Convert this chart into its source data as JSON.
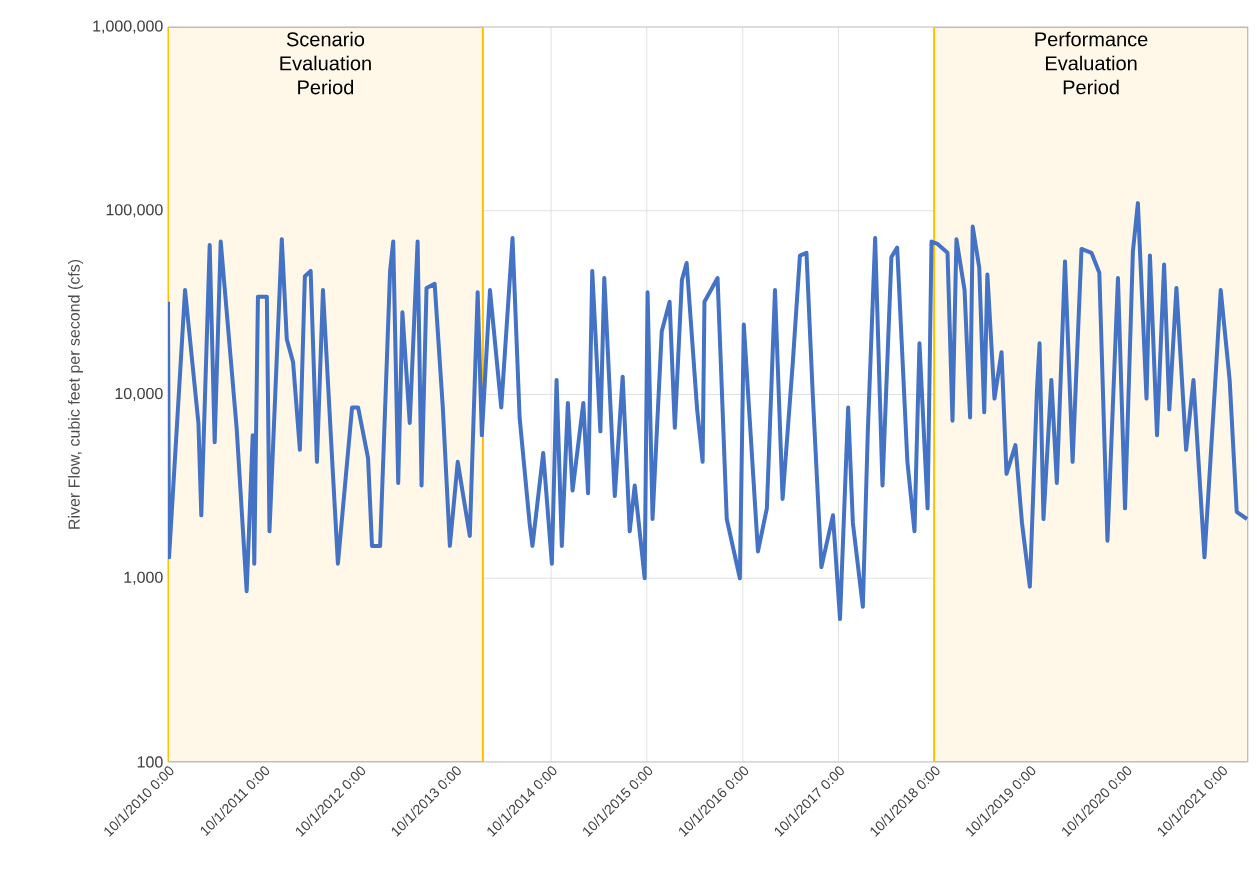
{
  "chart_data": {
    "type": "line",
    "ylabel": "River Flow, cubic feet per second (cfs)",
    "log": "y",
    "grid": true,
    "line_style": "solid",
    "xlim": [
      "2010-10-01",
      "2022-01-10"
    ],
    "ylim": [
      100,
      1000000
    ],
    "yticks": [
      {
        "value": 100,
        "label": "100"
      },
      {
        "value": 1000,
        "label": "1,000"
      },
      {
        "value": 10000,
        "label": "10,000"
      },
      {
        "value": 100000,
        "label": "100,000"
      },
      {
        "value": 1000000,
        "label": "1,000,000"
      }
    ],
    "xticks": [
      {
        "value": "2010-10-01",
        "label": "10/1/2010 0:00"
      },
      {
        "value": "2011-10-01",
        "label": "10/1/2011 0:00"
      },
      {
        "value": "2012-10-01",
        "label": "10/1/2012 0:00"
      },
      {
        "value": "2013-10-01",
        "label": "10/1/2013 0:00"
      },
      {
        "value": "2014-10-01",
        "label": "10/1/2014 0:00"
      },
      {
        "value": "2015-10-01",
        "label": "10/1/2015 0:00"
      },
      {
        "value": "2016-10-01",
        "label": "10/1/2016 0:00"
      },
      {
        "value": "2017-10-01",
        "label": "10/1/2017 0:00"
      },
      {
        "value": "2018-10-01",
        "label": "10/1/2018 0:00"
      },
      {
        "value": "2019-10-01",
        "label": "10/1/2019 0:00"
      },
      {
        "value": "2020-10-01",
        "label": "10/1/2020 0:00"
      },
      {
        "value": "2021-10-01",
        "label": "10/1/2021 0:00"
      }
    ],
    "bands": [
      {
        "axis": "x",
        "from": "2010-10-01",
        "to": "2014-01-14",
        "label": "Scenario Evaluation Period",
        "color": "#fff8e8"
      },
      {
        "axis": "x",
        "from": "2018-10-01",
        "to": "2022-01-10",
        "label": "Performance Evaluation Period",
        "color": "#fff8e8"
      }
    ],
    "series": [
      {
        "color": "#4472c4",
        "x": [
          "2010-10-01",
          "2010-10-05",
          "2010-12-05",
          "2011-01-25",
          "2011-02-05",
          "2011-03-09",
          "2011-03-28",
          "2011-04-20",
          "2011-05-16",
          "2011-06-20",
          "2011-07-28",
          "2011-08-20",
          "2011-08-26",
          "2011-09-09",
          "2011-10-13",
          "2011-10-23",
          "2011-12-09",
          "2011-12-28",
          "2012-01-21",
          "2012-02-16",
          "2012-03-06",
          "2012-03-28",
          "2012-04-21",
          "2012-05-14",
          "2012-06-21",
          "2012-07-10",
          "2012-09-02",
          "2012-09-25",
          "2012-11-02",
          "2012-11-17",
          "2012-12-18",
          "2013-01-25",
          "2013-02-06",
          "2013-02-25",
          "2013-03-13",
          "2013-04-10",
          "2013-05-10",
          "2013-05-25",
          "2013-06-13",
          "2013-07-14",
          "2013-08-14",
          "2013-09-10",
          "2013-10-10",
          "2013-11-25",
          "2013-12-25",
          "2014-01-10",
          "2014-02-10",
          "2014-03-25",
          "2014-05-07",
          "2014-06-03",
          "2014-07-11",
          "2014-07-22",
          "2014-09-01",
          "2014-10-04",
          "2014-10-22",
          "2014-11-11",
          "2014-12-04",
          "2014-12-22",
          "2015-02-01",
          "2015-02-19",
          "2015-03-07",
          "2015-04-07",
          "2015-04-22",
          "2015-06-01",
          "2015-07-01",
          "2015-07-28",
          "2015-08-16",
          "2015-09-23",
          "2015-10-04",
          "2015-10-23",
          "2015-11-27",
          "2015-12-27",
          "2016-01-16",
          "2016-02-12",
          "2016-03-01",
          "2016-04-10",
          "2016-05-01",
          "2016-05-08",
          "2016-06-27",
          "2016-08-01",
          "2016-09-20",
          "2016-10-05",
          "2016-11-28",
          "2017-01-01",
          "2017-02-01",
          "2017-03-02",
          "2017-04-10",
          "2017-05-07",
          "2017-06-01",
          "2017-06-25",
          "2017-07-28",
          "2017-09-10",
          "2017-10-07",
          "2017-11-07",
          "2017-11-25",
          "2018-01-02",
          "2018-01-21",
          "2018-02-18",
          "2018-03-18",
          "2018-04-21",
          "2018-05-13",
          "2018-06-21",
          "2018-07-18",
          "2018-08-06",
          "2018-09-06",
          "2018-09-21",
          "2018-10-14",
          "2018-11-21",
          "2018-12-10",
          "2018-12-25",
          "2019-01-25",
          "2019-02-15",
          "2019-02-25",
          "2019-03-22",
          "2019-04-10",
          "2019-04-22",
          "2019-05-19",
          "2019-06-15",
          "2019-07-04",
          "2019-08-07",
          "2019-09-01",
          "2019-10-01",
          "2019-10-28",
          "2019-11-07",
          "2019-11-22",
          "2019-12-22",
          "2020-01-12",
          "2020-02-12",
          "2020-03-12",
          "2020-04-15",
          "2020-05-23",
          "2020-06-22",
          "2020-07-23",
          "2020-09-01",
          "2020-09-28",
          "2020-10-28",
          "2020-11-16",
          "2020-12-19",
          "2021-01-01",
          "2021-01-28",
          "2021-02-24",
          "2021-03-16",
          "2021-04-12",
          "2021-05-19",
          "2021-06-16",
          "2021-07-28",
          "2021-09-06",
          "2021-09-28",
          "2021-11-01",
          "2021-11-28",
          "2022-01-06"
        ],
        "values": [
          32000,
          1300,
          37000,
          7000,
          2200,
          65000,
          5500,
          68000,
          25000,
          6500,
          850,
          6000,
          1200,
          34000,
          34000,
          1800,
          70000,
          20000,
          15000,
          5000,
          44000,
          47000,
          4300,
          37000,
          3700,
          1200,
          8500,
          8500,
          4500,
          1500,
          1500,
          47000,
          68000,
          3300,
          28000,
          7000,
          68000,
          3200,
          38000,
          40000,
          8500,
          1500,
          4300,
          1700,
          36000,
          6000,
          37000,
          8500,
          71000,
          7500,
          2000,
          1500,
          4800,
          1200,
          12000,
          1500,
          9000,
          3000,
          9000,
          2900,
          47000,
          6300,
          43000,
          2800,
          12500,
          1800,
          3200,
          1000,
          36000,
          2100,
          22000,
          32000,
          6600,
          42000,
          52000,
          8300,
          4300,
          32000,
          43000,
          2100,
          1000,
          24000,
          1400,
          2400,
          37000,
          2700,
          15000,
          57000,
          59000,
          10000,
          1150,
          2200,
          600,
          8500,
          2000,
          700,
          6300,
          71000,
          3200,
          56000,
          63000,
          4300,
          1800,
          19000,
          2400,
          68000,
          66000,
          59000,
          7200,
          70000,
          37000,
          7500,
          82000,
          49000,
          8000,
          45000,
          9500,
          17000,
          3700,
          5300,
          2000,
          900,
          10500,
          19000,
          2100,
          12000,
          3300,
          53000,
          4300,
          62000,
          59000,
          46000,
          1600,
          43000,
          2400,
          60000,
          110000,
          9500,
          57000,
          6000,
          51000,
          8300,
          38000,
          5000,
          12000,
          1300,
          11000,
          37000,
          12000,
          2300,
          2100
        ]
      }
    ]
  }
}
